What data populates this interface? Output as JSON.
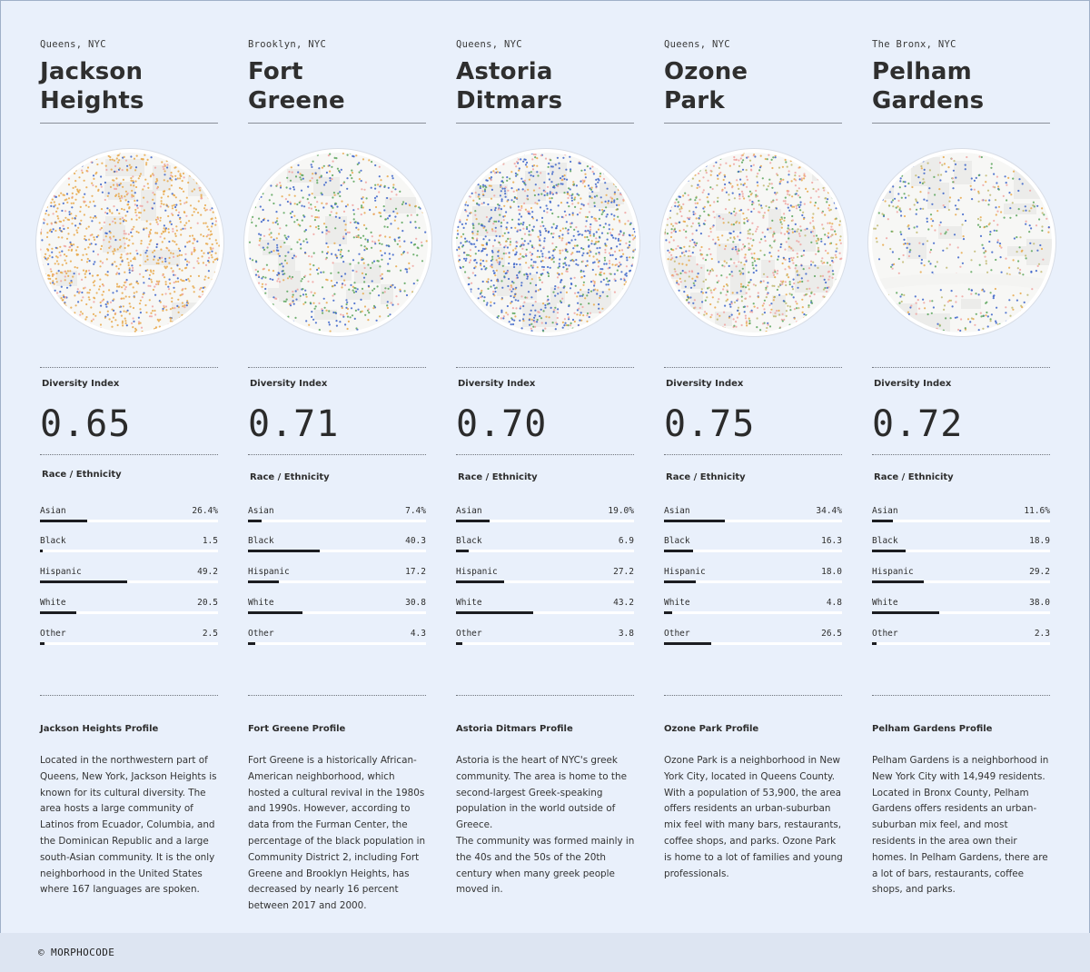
{
  "headers": {
    "diversity_index": "Diversity Index",
    "race_ethnicity": "Race / Ethnicity"
  },
  "footer": {
    "text": "© MORPHOCODE"
  },
  "legend_colors": {
    "asian": "#e8a84a",
    "black": "#3b63c9",
    "hispanic": "#f0a3a0",
    "white": "#5aa55a",
    "other": "#c0b870"
  },
  "neighborhoods": [
    {
      "city": "Queens, NYC",
      "name_line1": "Jackson",
      "name_line2": "Heights",
      "diversity_index": "0.65",
      "ethnicity": [
        {
          "label": "Asian",
          "value": "26.4%",
          "fraction": 0.264
        },
        {
          "label": "Black",
          "value": "1.5",
          "fraction": 0.015
        },
        {
          "label": "Hispanic",
          "value": "49.2",
          "fraction": 0.492
        },
        {
          "label": "White",
          "value": "20.5",
          "fraction": 0.205
        },
        {
          "label": "Other",
          "value": "2.5",
          "fraction": 0.025
        }
      ],
      "profile_title": "Jackson Heights Profile",
      "profile_text": "Located in the northwestern part of Queens, New York, Jackson Heights is known for its cultural diversity. The area hosts a large community of Latinos from Ecuador, Columbia, and the Dominican Republic and a large south-Asian community. It is the only neighborhood in the United States where 167 languages are spoken."
    },
    {
      "city": "Brooklyn, NYC",
      "name_line1": "Fort",
      "name_line2": "Greene",
      "diversity_index": "0.71",
      "ethnicity": [
        {
          "label": "Asian",
          "value": "7.4%",
          "fraction": 0.074
        },
        {
          "label": "Black",
          "value": "40.3",
          "fraction": 0.403
        },
        {
          "label": "Hispanic",
          "value": "17.2",
          "fraction": 0.172
        },
        {
          "label": "White",
          "value": "30.8",
          "fraction": 0.308
        },
        {
          "label": "Other",
          "value": "4.3",
          "fraction": 0.043
        }
      ],
      "profile_title": "Fort Greene Profile",
      "profile_text": "Fort Greene is a historically African-American neighborhood, which hosted a cultural revival in the 1980s and 1990s. However, according to data from the Furman Center, the percentage of the black population in Community District 2, including Fort Greene and Brooklyn Heights, has decreased by nearly 16 percent between 2017 and 2000."
    },
    {
      "city": "Queens, NYC",
      "name_line1": "Astoria",
      "name_line2": "Ditmars",
      "diversity_index": "0.70",
      "ethnicity": [
        {
          "label": "Asian",
          "value": "19.0%",
          "fraction": 0.19
        },
        {
          "label": "Black",
          "value": "6.9",
          "fraction": 0.069
        },
        {
          "label": "Hispanic",
          "value": "27.2",
          "fraction": 0.272
        },
        {
          "label": "White",
          "value": "43.2",
          "fraction": 0.432
        },
        {
          "label": "Other",
          "value": "3.8",
          "fraction": 0.038
        }
      ],
      "profile_title": "Astoria Ditmars Profile",
      "profile_text": "Astoria is the heart of NYC's greek community. The area is home to the second-largest Greek-speaking population in the world outside of Greece.\nThe community was formed mainly in the 40s and the 50s of the 20th century when many greek people moved in."
    },
    {
      "city": "Queens, NYC",
      "name_line1": "Ozone",
      "name_line2": "Park",
      "diversity_index": "0.75",
      "ethnicity": [
        {
          "label": "Asian",
          "value": "34.4%",
          "fraction": 0.344
        },
        {
          "label": "Black",
          "value": "16.3",
          "fraction": 0.163
        },
        {
          "label": "Hispanic",
          "value": "18.0",
          "fraction": 0.18
        },
        {
          "label": "White",
          "value": "4.8",
          "fraction": 0.048
        },
        {
          "label": "Other",
          "value": "26.5",
          "fraction": 0.265
        }
      ],
      "profile_title": "Ozone Park Profile",
      "profile_text": "Ozone Park is a neighborhood in New York City, located in Queens County. With a population of 53,900, the area offers residents an urban-suburban mix feel with many bars, restaurants, coffee shops, and parks. Ozone Park is home to a lot of families and young professionals."
    },
    {
      "city": "The Bronx, NYC",
      "name_line1": "Pelham",
      "name_line2": "Gardens",
      "diversity_index": "0.72",
      "ethnicity": [
        {
          "label": "Asian",
          "value": "11.6%",
          "fraction": 0.116
        },
        {
          "label": "Black",
          "value": "18.9",
          "fraction": 0.189
        },
        {
          "label": "Hispanic",
          "value": "29.2",
          "fraction": 0.292
        },
        {
          "label": "White",
          "value": "38.0",
          "fraction": 0.38
        },
        {
          "label": "Other",
          "value": "2.3",
          "fraction": 0.023
        }
      ],
      "profile_title": "Pelham Gardens Profile",
      "profile_text": "Pelham Gardens is a neighborhood in New York City with 14,949 residents. Located in Bronx County, Pelham Gardens offers residents an urban-suburban mix feel, and most residents in the area own their homes. In Pelham Gardens, there are a lot of bars, restaurants, coffee shops, and parks."
    }
  ]
}
